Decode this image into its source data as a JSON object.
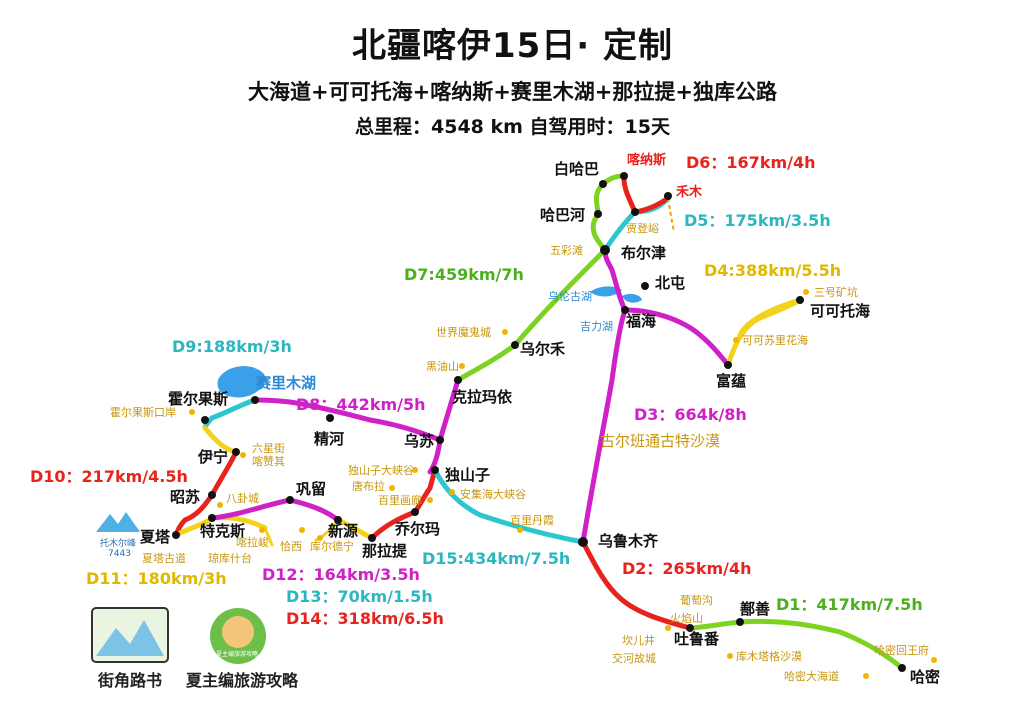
{
  "header": {
    "title": "北疆喀伊15日· 定制",
    "subtitle": "大海道+可可托海+喀纳斯+赛里木湖+那拉提+独库公路",
    "stats": "总里程：4548  km   自驾用时：15天"
  },
  "colors": {
    "green": "#7ed321",
    "red": "#e8231d",
    "magenta": "#d020c8",
    "cyan": "#2cc6cf",
    "yellow": "#f2d21b",
    "lake": "#3aa0e8",
    "poi": "#c8960c"
  },
  "cities": {
    "baihaba": "白哈巴",
    "kanas": "喀纳斯",
    "hemu": "禾木",
    "habahe": "哈巴河",
    "jiadengyu": "贾登峪",
    "burqin": "布尔津",
    "beitun": "北屯",
    "fuhai": "福海",
    "keketuohai": "可可托海",
    "fuyun": "富蕴",
    "wuerhe": "乌尔禾",
    "kelamayi": "克拉玛依",
    "huoerguosi": "霍尔果斯",
    "jinghe": "精河",
    "wusu": "乌苏",
    "yining": "伊宁",
    "dushanzi": "独山子",
    "gongliu": "巩留",
    "zhaosu": "昭苏",
    "xiata": "夏塔",
    "tekesi": "特克斯",
    "xinyuan": "新源",
    "qiaoerma": "乔尔玛",
    "nalati": "那拉提",
    "urumqi": "乌鲁木齐",
    "shanshan": "鄯善",
    "tulufan": "吐鲁番",
    "hami": "哈密"
  },
  "pois": {
    "wucaitan": "五彩滩",
    "wulungu": "乌伦古湖",
    "jilihu": "吉力湖",
    "sanhaokuangkeng": "三号矿坑",
    "kekesuli": "可可苏里花海",
    "mogui": "世界魔鬼城",
    "heiyoushan": "黑油山",
    "sailimu": "赛里木湖",
    "huoerguosikouan": "霍尔果斯口岸",
    "liuxingjie": "六星街\n喀赞其",
    "dushanzidaxiagu": "独山子大峡谷",
    "tangbula": "唐布拉",
    "bailihuaqiang": "百里画廊",
    "anjihai": "安集海大峡谷",
    "bailidanxia": "百里丹霞",
    "baguacheng": "八卦城",
    "kalajun": "喀拉峻",
    "qiongkushitai": "琼库什台",
    "xiatagudao": "夏塔古道",
    "qiaxi": "恰西",
    "kurudeling": "库尔德宁",
    "putaogou": "葡萄沟",
    "huoyanshan": "火焰山",
    "kanerjing": "坎儿井",
    "jiaohe": "交河故城",
    "kumutage": "库木塔格沙漠",
    "hamihuiwangfu": "哈密回王府",
    "hamidahaidao": "哈密大海道",
    "gurbantunggut": "古尔班通古特沙漠",
    "tomur": "托木尔峰",
    "tomur_h": "7443"
  },
  "days": {
    "d1": "D1：417km/7.5h",
    "d2": "D2：265km/4h",
    "d3": "D3：664k/8h",
    "d4": "D4:388km/5.5h",
    "d5": "D5：175km/3.5h",
    "d6": "D6：167km/4h",
    "d7": "D7:459km/7h",
    "d8": "D8：442km/5h",
    "d9": "D9:188km/3h",
    "d10": "D10：217km/4.5h",
    "d11": "D11：180km/3h",
    "d12": "D12：164km/3.5h",
    "d13": "D13：70km/1.5h",
    "d14": "D14：318km/6.5h",
    "d15": "D15:434km/7.5h"
  },
  "logos": {
    "left": "街角路书",
    "right": "夏主编旅游攻略",
    "badge": "夏主编旅游攻略"
  }
}
